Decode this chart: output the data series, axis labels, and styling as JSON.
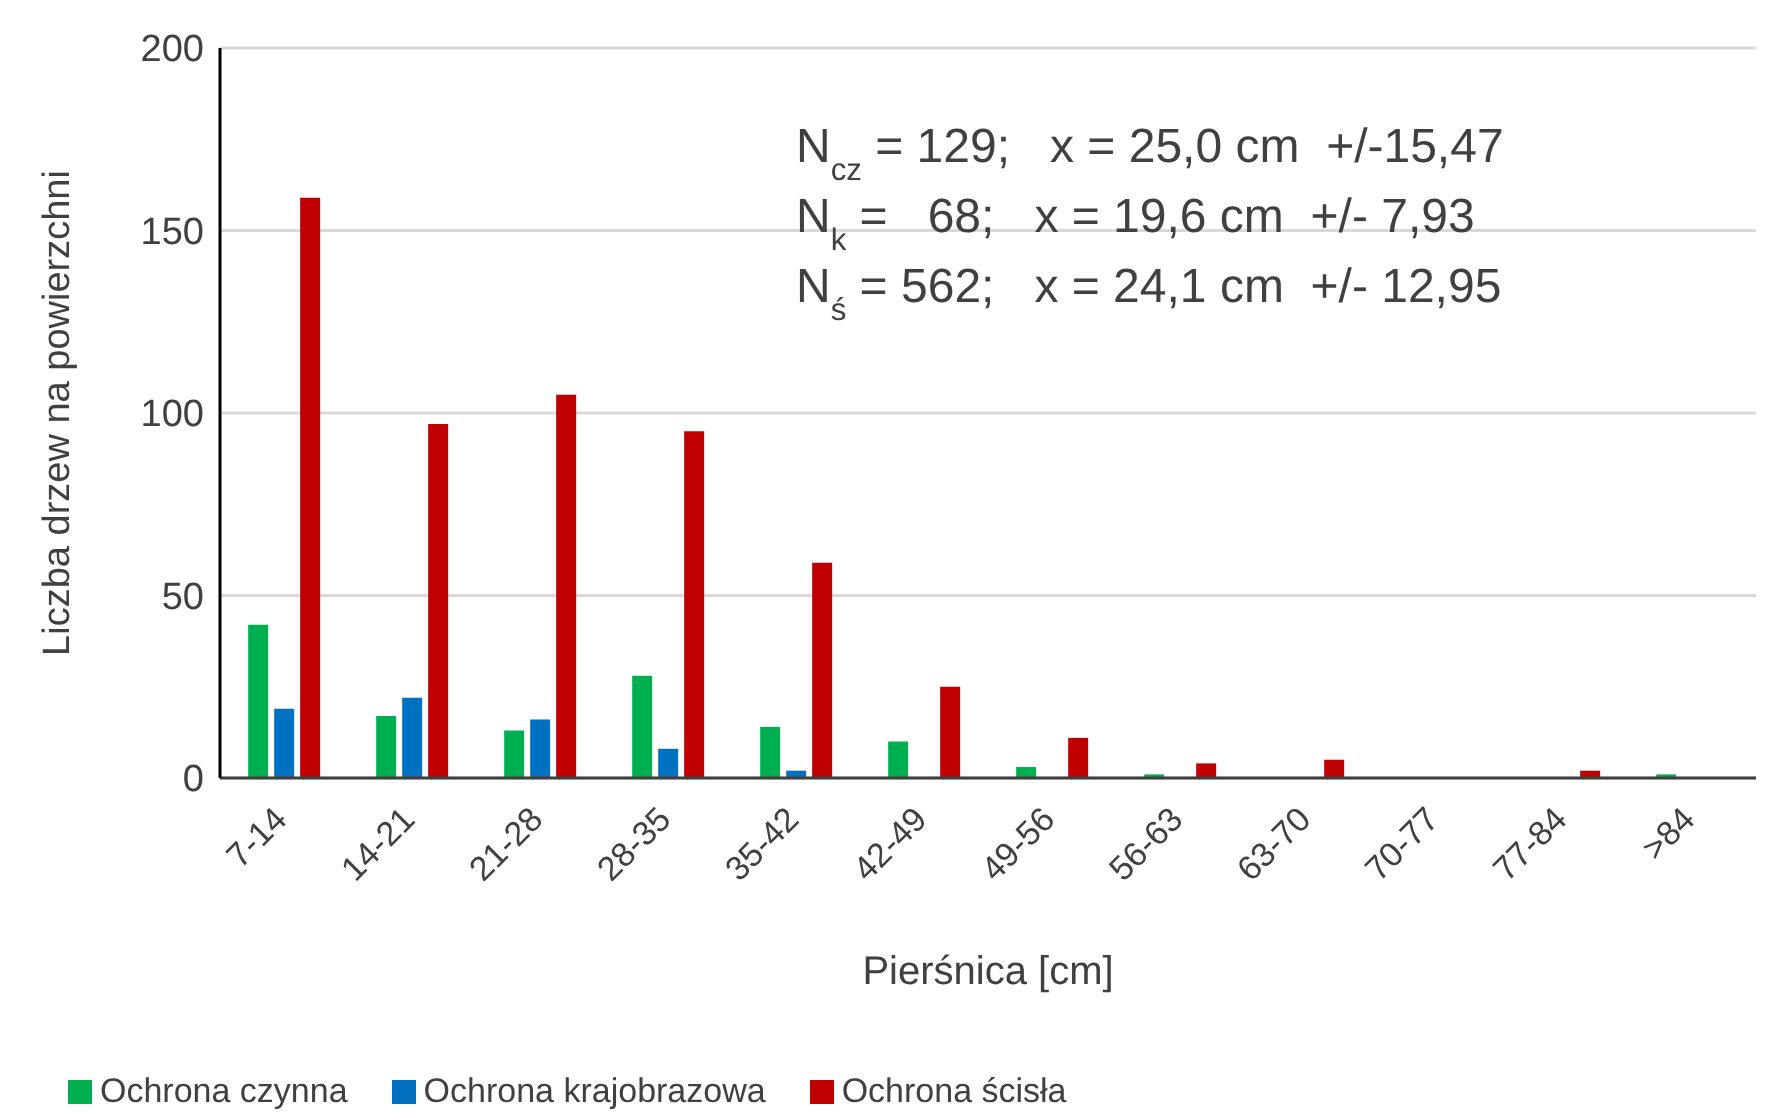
{
  "chart_data": {
    "type": "bar",
    "xlabel": "Pierśnica [cm]",
    "ylabel": "Liczba drzew na powierzchni",
    "categories": [
      "7-14",
      "14-21",
      "21-28",
      "28-35",
      "35-42",
      "42-49",
      "49-56",
      "56-63",
      "63-70",
      "70-77",
      "77-84",
      ">84"
    ],
    "series": [
      {
        "name": "Ochrona czynna",
        "color": "#00b050",
        "values": [
          42,
          17,
          13,
          28,
          14,
          10,
          3,
          1,
          0,
          0,
          0,
          1
        ]
      },
      {
        "name": "Ochrona krajobrazowa",
        "color": "#0070c0",
        "values": [
          19,
          22,
          16,
          8,
          2,
          0,
          0,
          0,
          0,
          0,
          0,
          0
        ]
      },
      {
        "name": "Ochrona ścisła",
        "color": "#c00000",
        "values": [
          159,
          97,
          105,
          95,
          59,
          25,
          11,
          4,
          5,
          0,
          2,
          0
        ]
      }
    ],
    "ylim": [
      0,
      200
    ],
    "yticks": [
      0,
      50,
      100,
      150,
      200
    ],
    "grid": "y",
    "legend": "bottom left",
    "annotations": [
      "N$_{cz}$ = 129;   x = 25,0 cm  +/-15,47",
      "N$_{k}$ =   68;   x = 19,6 cm  +/- 7,93",
      "N$_{ś}$ = 562;   x = 24,1 cm  +/- 12,95"
    ]
  }
}
